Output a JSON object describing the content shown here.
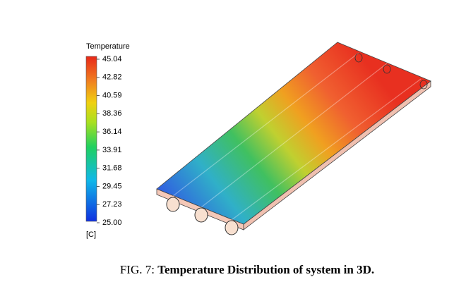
{
  "legend": {
    "title": "Temperature",
    "ticks": [
      "45.04",
      "42.82",
      "40.59",
      "38.36",
      "36.14",
      "33.91",
      "31.68",
      "29.45",
      "27.23",
      "25.00"
    ],
    "unit": "[C]"
  },
  "caption": {
    "label": "FIG. 7:",
    "text": "Temperature Distribution of system in 3D."
  }
}
